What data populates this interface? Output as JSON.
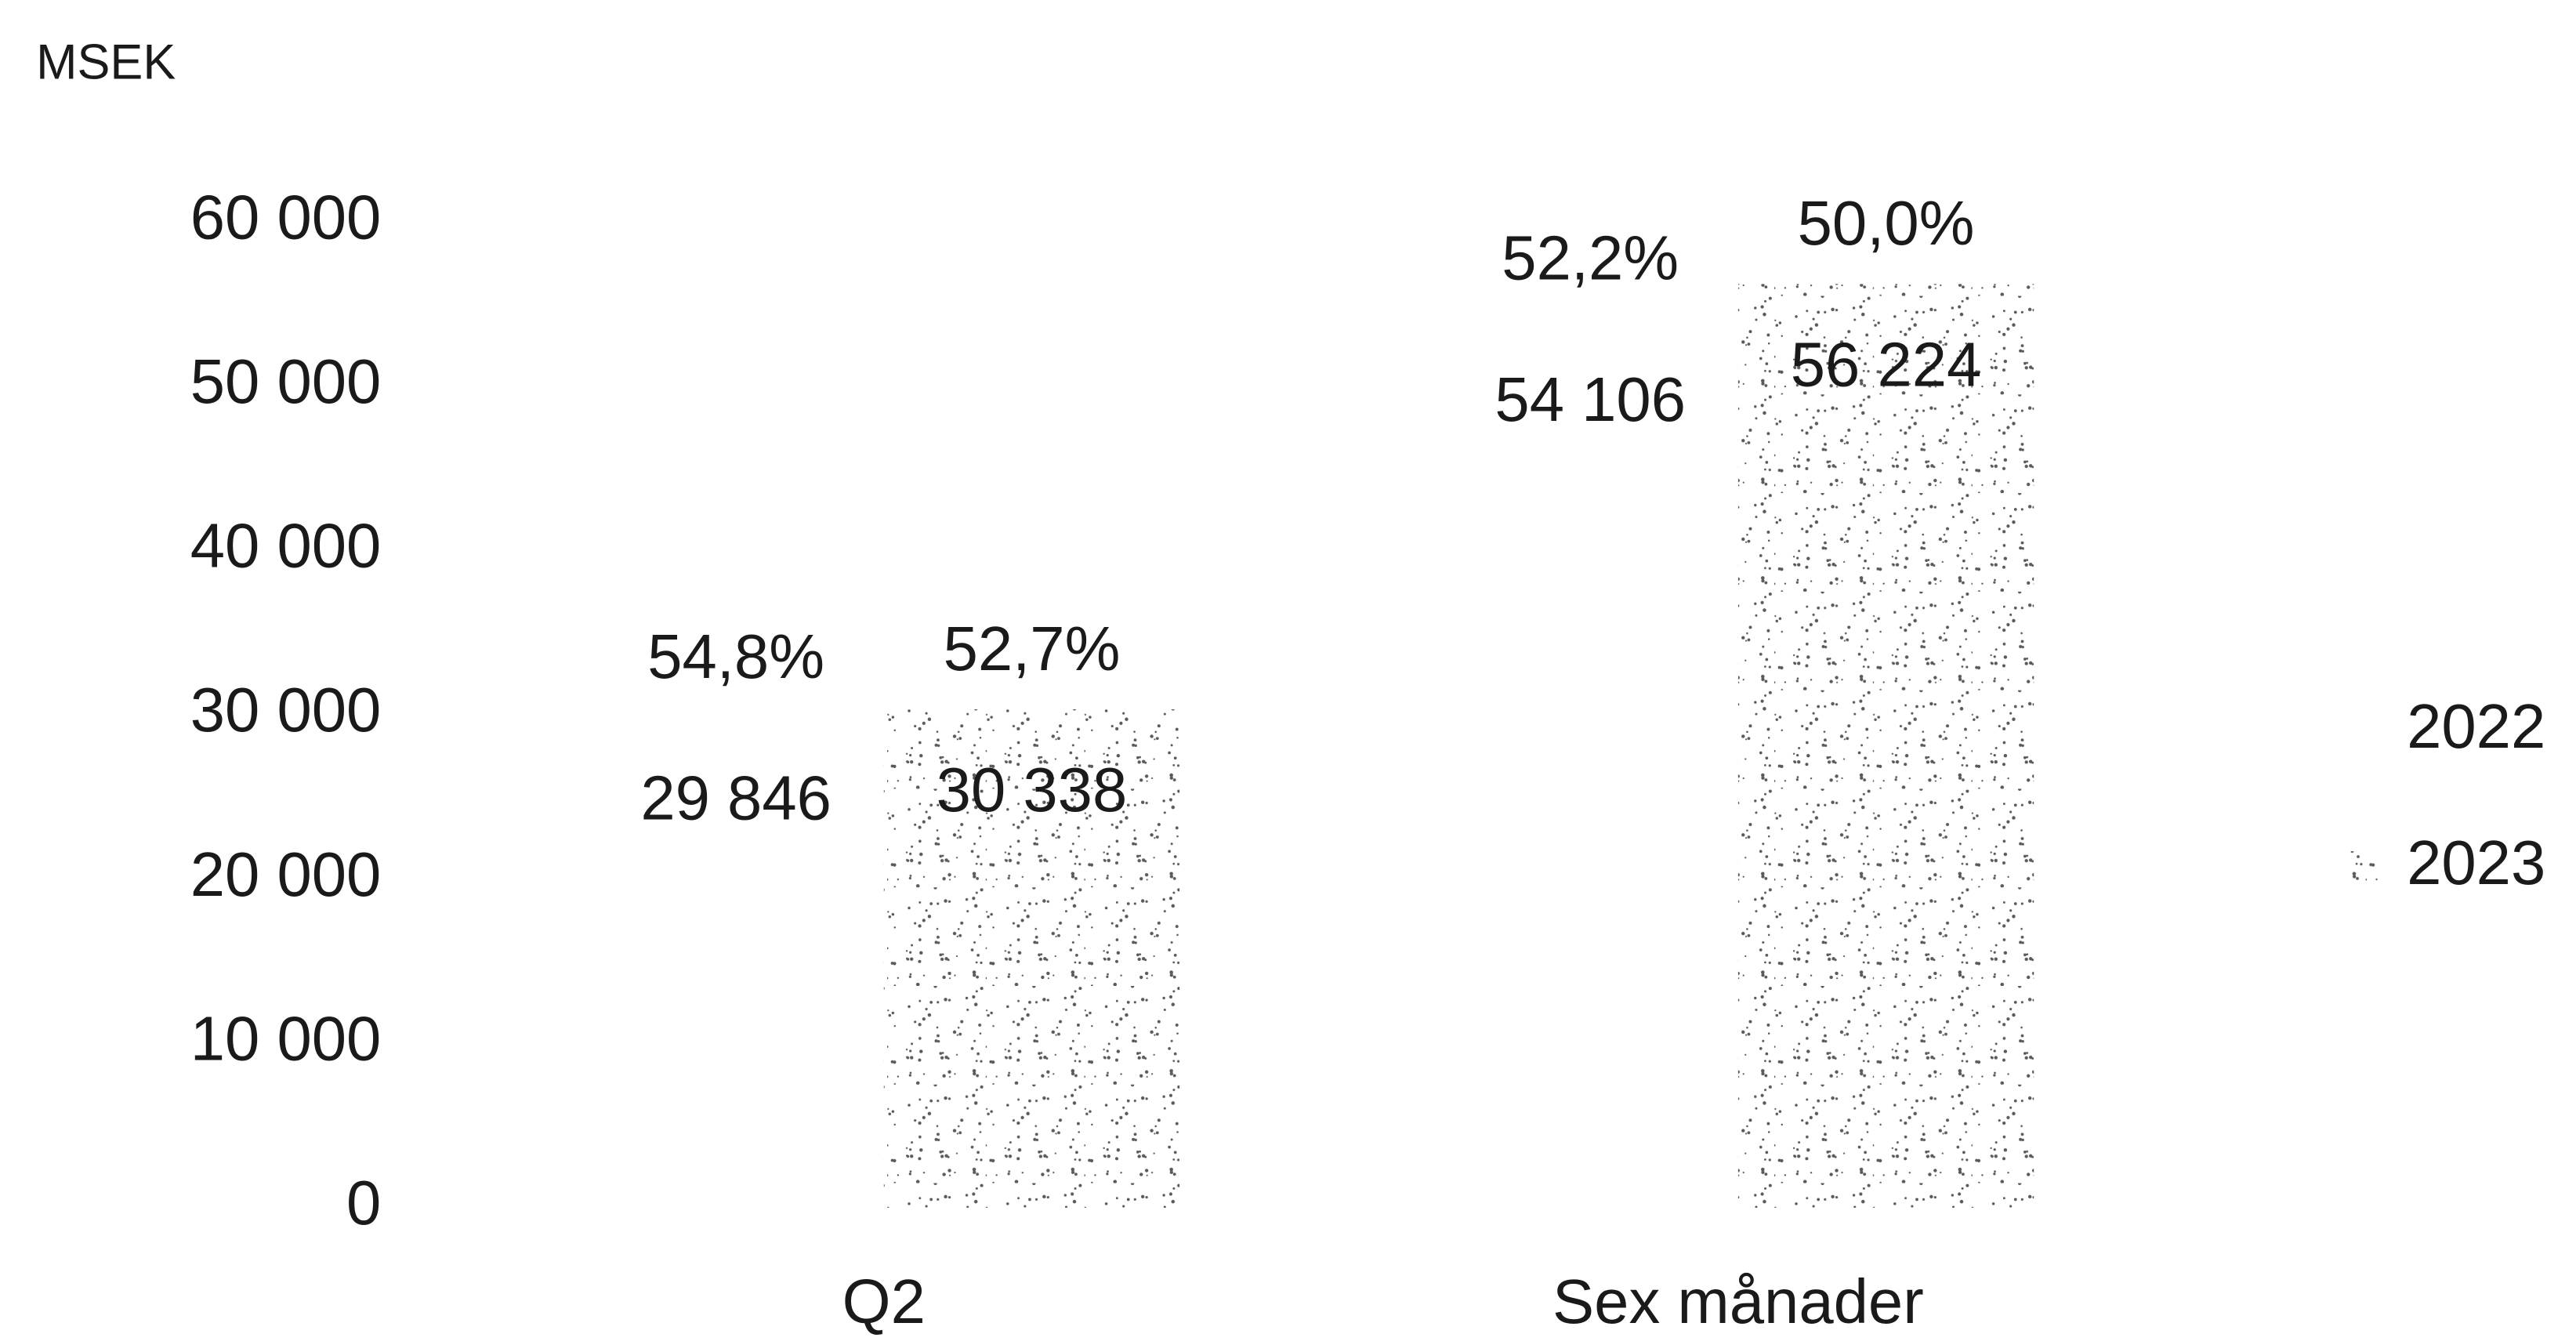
{
  "chart_data": {
    "type": "bar",
    "y_label": "MSEK",
    "categories": [
      "Q2",
      "Sex månader"
    ],
    "series": [
      {
        "name": "2022",
        "color": "#ffffff",
        "values": [
          29846,
          54106
        ],
        "value_labels": [
          "29 846",
          "54 106"
        ],
        "share_labels": [
          "54,8%",
          "52,2%"
        ]
      },
      {
        "name": "2023",
        "color": "#5a5a5a",
        "values": [
          30338,
          56224
        ],
        "value_labels": [
          "30 338",
          "56 224"
        ],
        "share_labels": [
          "52,7%",
          "50,0%"
        ]
      }
    ],
    "ylim": [
      0,
      60000
    ],
    "yticks": [
      0,
      {
        "value": 10000,
        "label": "10 000"
      },
      {
        "value": 20000,
        "label": "20 000"
      },
      {
        "value": 30000,
        "label": "30 000"
      },
      {
        "value": 40000,
        "label": "40 000"
      },
      {
        "value": 50000,
        "label": "50 000"
      },
      {
        "value": 60000,
        "label": "60 000"
      }
    ],
    "grid": false,
    "legend": "right"
  }
}
